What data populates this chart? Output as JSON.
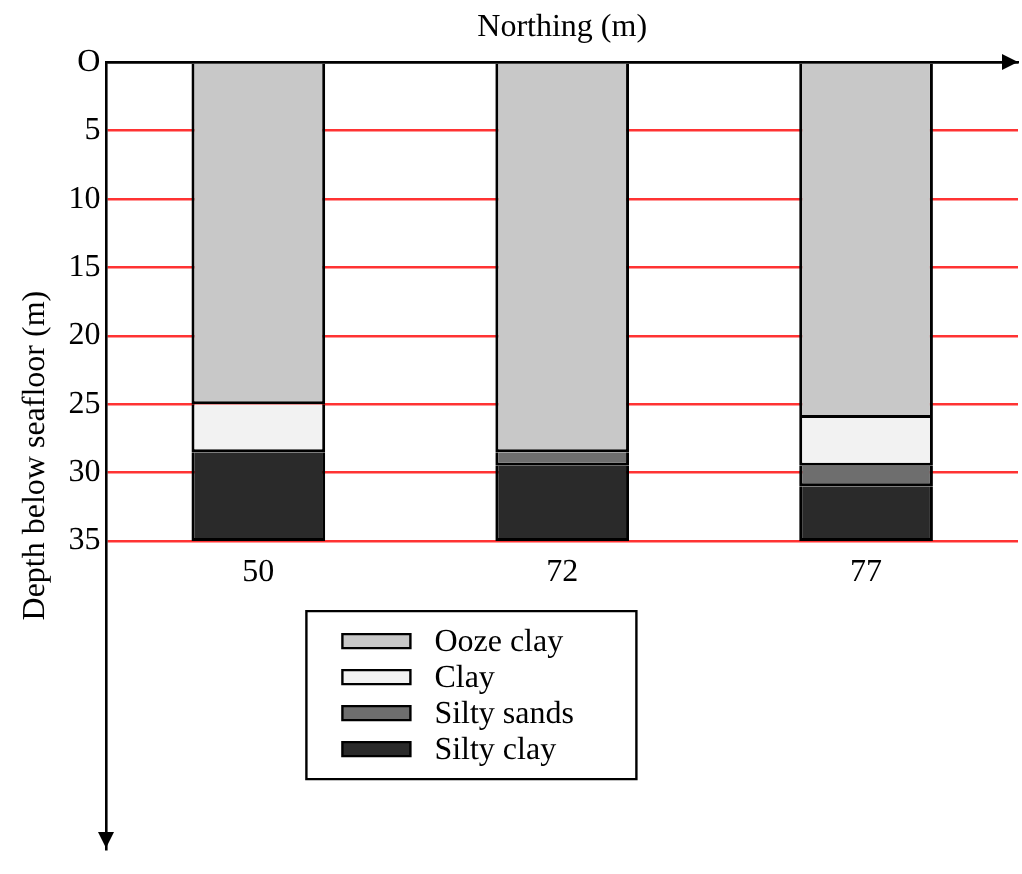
{
  "chart_data": {
    "type": "bar",
    "xlabel": "Northing (m)",
    "ylabel": "Depth below seafloor (m)",
    "categories": [
      "50",
      "72",
      "77"
    ],
    "series": [
      {
        "name": "Ooze clay",
        "color": "#c8c8c8",
        "values": [
          25,
          28.5,
          26
        ]
      },
      {
        "name": "Clay",
        "color": "#f2f2f2",
        "values": [
          3.5,
          0,
          3.5
        ]
      },
      {
        "name": "Silty sands",
        "color": "#6e6e6e",
        "values": [
          0,
          1,
          1.5
        ]
      },
      {
        "name": "Silty clay",
        "color": "#2a2a2a",
        "values": [
          6.5,
          5.5,
          4
        ]
      }
    ],
    "stacked": true,
    "ylim": [
      57.5,
      0
    ],
    "yticks": [
      {
        "value": 0,
        "label": "O"
      },
      5,
      10,
      15,
      20,
      25,
      30,
      35
    ],
    "grid": "y",
    "legend": "bottom"
  }
}
